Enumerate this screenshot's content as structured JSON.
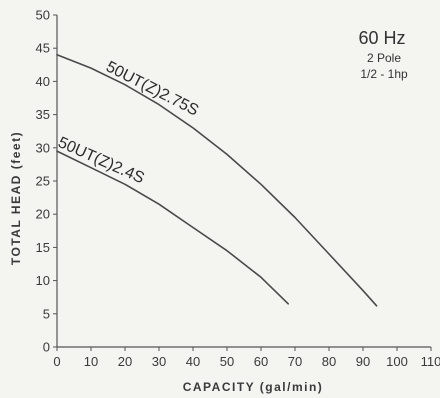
{
  "chart_data": {
    "type": "line",
    "title": "",
    "xlabel": "CAPACITY (gal/min)",
    "ylabel": "TOTAL HEAD (feet)",
    "xlim": [
      0,
      110
    ],
    "ylim": [
      0,
      50
    ],
    "xticks": [
      0,
      10,
      20,
      30,
      40,
      50,
      60,
      70,
      80,
      90,
      100,
      110
    ],
    "yticks": [
      0,
      5,
      10,
      15,
      20,
      25,
      30,
      35,
      40,
      45,
      50
    ],
    "grid": false,
    "legend": "none",
    "annotation": {
      "frequency": "60 Hz",
      "poles": "2 Pole",
      "power": "1/2 - 1hp"
    },
    "series": [
      {
        "name": "50UT(Z)2.75S",
        "x": [
          0,
          10,
          20,
          30,
          40,
          50,
          60,
          70,
          80,
          90,
          94
        ],
        "y": [
          44,
          42,
          39.5,
          36.5,
          33,
          29,
          24.5,
          19.5,
          14,
          8.5,
          6.2
        ]
      },
      {
        "name": "50UT(Z)2.4S",
        "x": [
          0,
          10,
          20,
          30,
          40,
          50,
          60,
          68
        ],
        "y": [
          29.5,
          27,
          24.5,
          21.5,
          18,
          14.5,
          10.5,
          6.5
        ]
      }
    ]
  }
}
